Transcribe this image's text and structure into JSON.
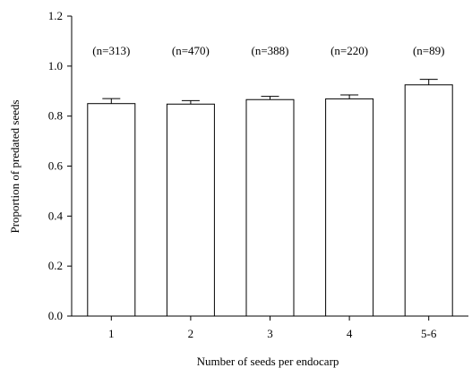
{
  "chart_data": {
    "type": "bar",
    "categories": [
      "1",
      "2",
      "3",
      "4",
      "5-6"
    ],
    "values": [
      0.85,
      0.848,
      0.866,
      0.869,
      0.925
    ],
    "errors": [
      0.02,
      0.014,
      0.013,
      0.016,
      0.022
    ],
    "annotations": [
      "(n=313)",
      "(n=470)",
      "(n=388)",
      "(n=220)",
      "(n=89)"
    ],
    "xlabel": "Number of seeds per endocarp",
    "ylabel": "Proportion of predated seeds",
    "ylim": [
      0,
      1.2
    ],
    "yticks": [
      "0.0",
      "0.2",
      "0.4",
      "0.6",
      "0.8",
      "1.0",
      "1.2"
    ],
    "grid": false,
    "colors": {
      "bar_fill": "#ffffff",
      "bar_stroke": "#000000",
      "axis": "#000000"
    }
  }
}
